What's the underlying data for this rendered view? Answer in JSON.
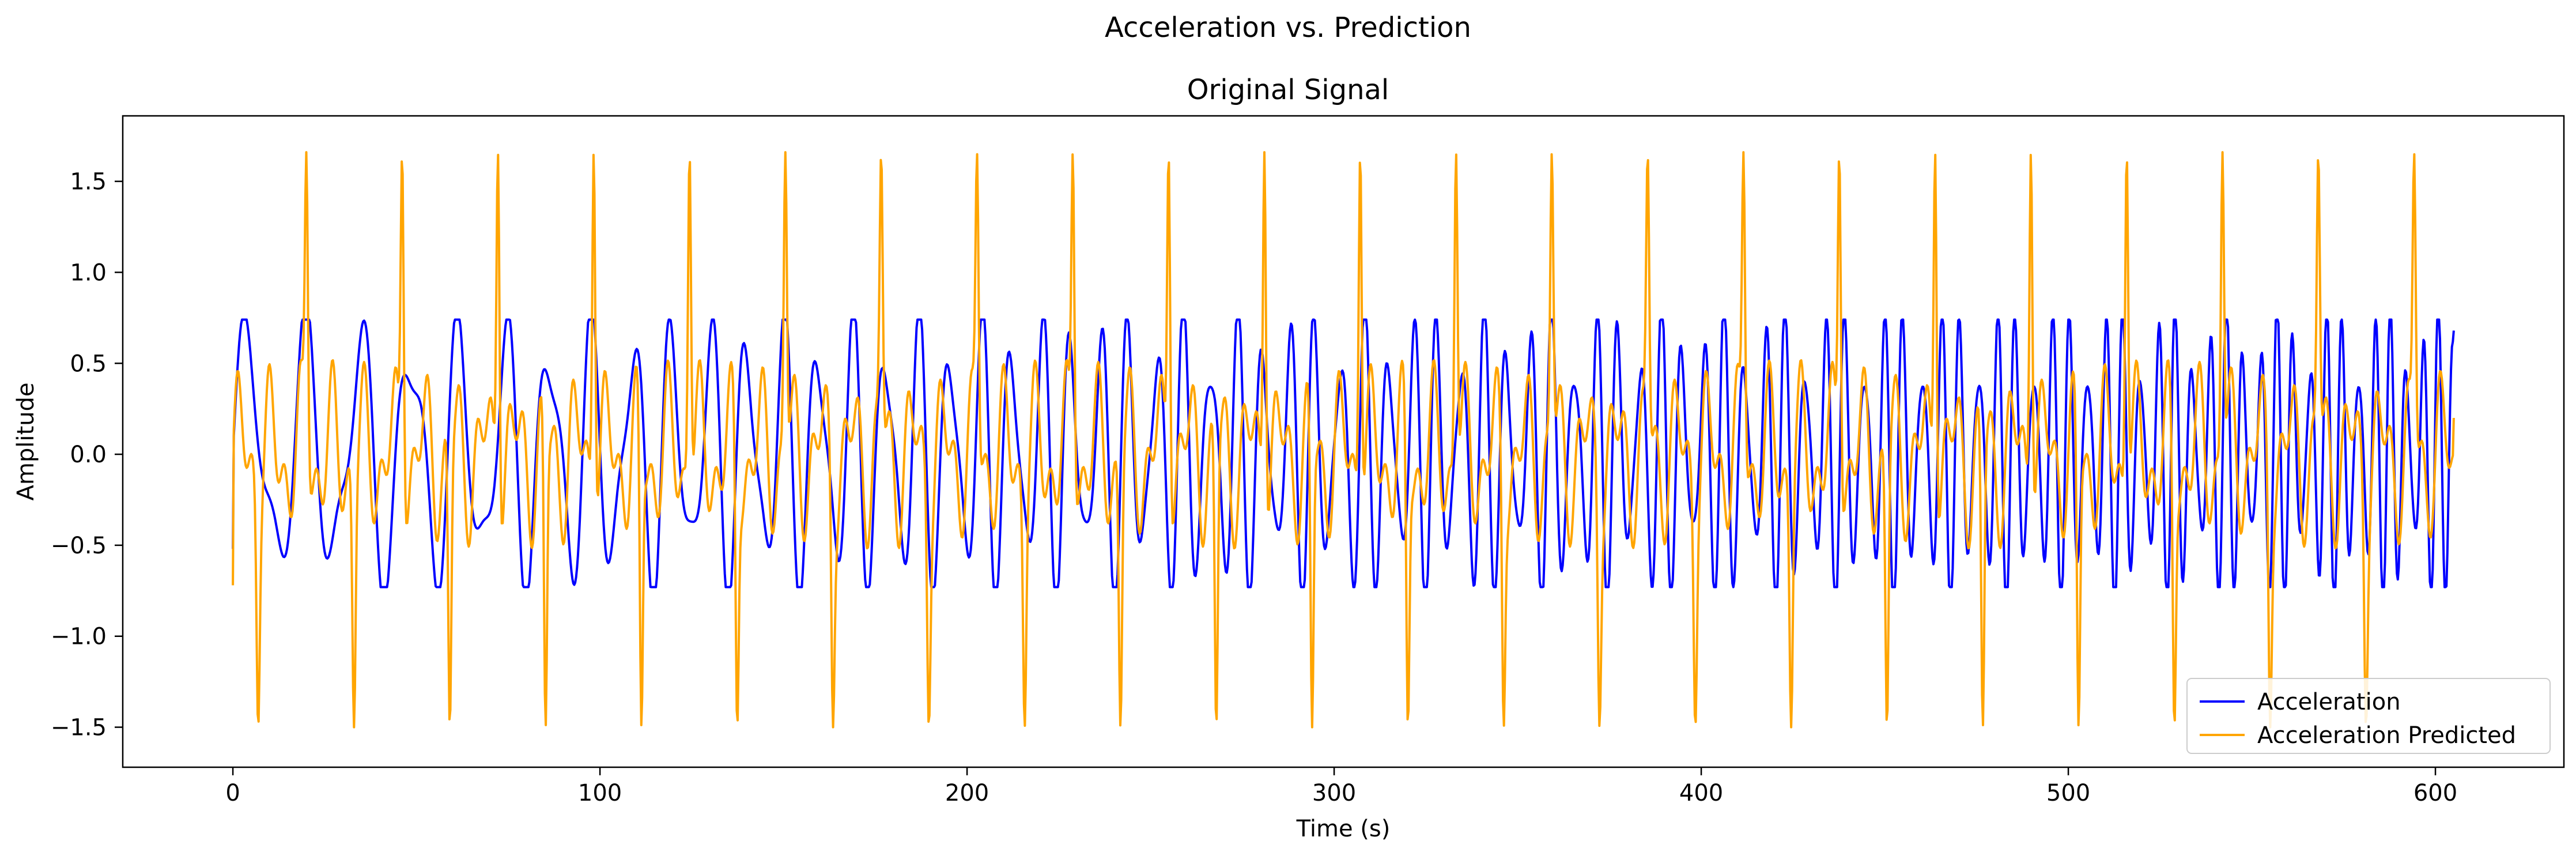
{
  "chart_data": {
    "type": "line",
    "suptitle": "Acceleration vs. Prediction",
    "title": "Original Signal",
    "xlabel": "Time (s)",
    "ylabel": "Amplitude",
    "xlim": [
      -30,
      635
    ],
    "ylim": [
      -1.72,
      1.86
    ],
    "xticks": [
      0,
      100,
      200,
      300,
      400,
      500,
      600
    ],
    "xtick_labels": [
      "0",
      "100",
      "200",
      "300",
      "400",
      "500",
      "600"
    ],
    "yticks": [
      -1.5,
      -1.0,
      -0.5,
      0.0,
      0.5,
      1.0,
      1.5
    ],
    "ytick_labels": [
      "−1.5",
      "−1.0",
      "−0.5",
      "0.0",
      "0.5",
      "1.0",
      "1.5"
    ],
    "grid": false,
    "legend": {
      "position": "lower-right",
      "entries": [
        "Acceleration",
        "Acceleration Predicted"
      ]
    },
    "sampling": {
      "t_start": 0,
      "t_end": 605,
      "dt": 0.25
    },
    "series": [
      {
        "name": "Acceleration",
        "color": "#0000ff",
        "generator": {
          "kind": "chirp-sum",
          "components": [
            {
              "amp": 0.62,
              "freq_start": 0.06,
              "freq_end": 0.235
            },
            {
              "amp": 0.25,
              "freq_start": 0.11,
              "freq_end": 0.305
            }
          ],
          "clip": [
            -0.73,
            0.74
          ],
          "first_value": -0.52,
          "last_value": 0.68
        }
      },
      {
        "name": "Acceleration Predicted",
        "color": "#ffa500",
        "generator": {
          "kind": "oscillation-with-spikes",
          "components": [
            {
              "amp": 0.3,
              "freq_start": 0.12,
              "freq_end": 0.12
            },
            {
              "amp": 0.22,
              "freq_start": 0.23,
              "freq_end": 0.23
            }
          ],
          "spike_period": 26.1,
          "spike_offset": 20.0,
          "spike_peak": 1.66,
          "spike_trough": -1.5,
          "first_value": -0.72,
          "last_value": 0.2
        }
      }
    ]
  }
}
